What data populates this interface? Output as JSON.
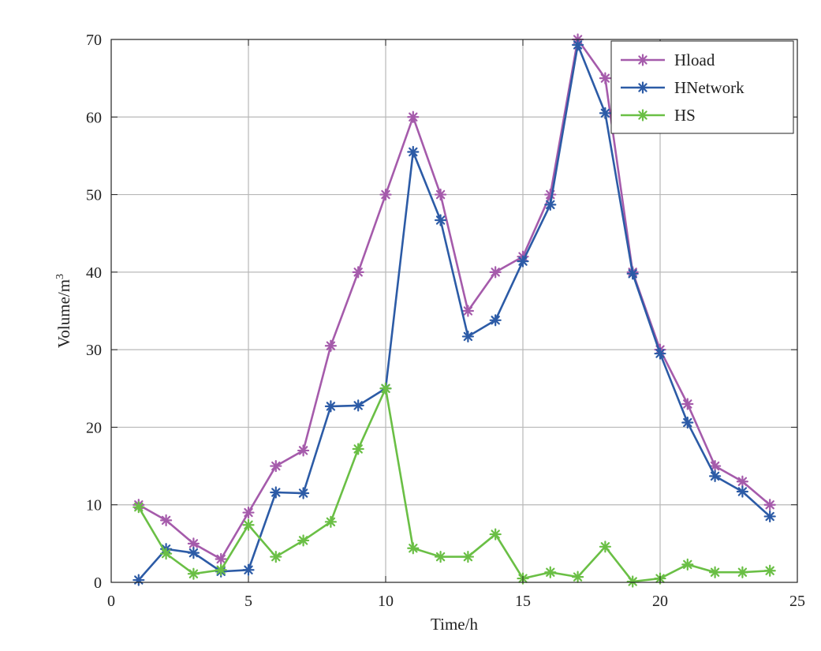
{
  "chart_data": {
    "type": "line",
    "title": "",
    "xlabel": "Time/h",
    "ylabel_base": "Volume/m",
    "ylabel_sup": "3",
    "xlim": [
      0,
      25
    ],
    "ylim": [
      0,
      70
    ],
    "xticks": [
      0,
      5,
      10,
      15,
      20,
      25
    ],
    "yticks": [
      0,
      10,
      20,
      30,
      40,
      50,
      60,
      70
    ],
    "grid": true,
    "legend_position": "top-right",
    "marker": "asterisk",
    "x": [
      1,
      2,
      3,
      4,
      5,
      6,
      7,
      8,
      9,
      10,
      11,
      12,
      13,
      14,
      15,
      16,
      17,
      18,
      19,
      20,
      21,
      22,
      23,
      24
    ],
    "series": [
      {
        "name": "Hload",
        "color": "#a55bab",
        "values": [
          10,
          8,
          5,
          3,
          9,
          15,
          17,
          30.5,
          40,
          50,
          60,
          50,
          35,
          40,
          42,
          50,
          70,
          65,
          40,
          30,
          23,
          15,
          13,
          10
        ]
      },
      {
        "name": "HNetwork",
        "color": "#2c5ba6",
        "values": [
          0.3,
          4.3,
          3.8,
          1.4,
          1.6,
          11.6,
          11.5,
          22.7,
          22.8,
          25,
          55.5,
          46.7,
          31.7,
          33.8,
          41.4,
          48.7,
          69.3,
          60.5,
          39.8,
          29.5,
          20.6,
          13.7,
          11.7,
          8.5
        ]
      },
      {
        "name": "HS",
        "color": "#6abf45",
        "values": [
          9.7,
          3.7,
          1.1,
          1.6,
          7.4,
          3.3,
          5.4,
          7.8,
          17.2,
          25,
          4.4,
          3.3,
          3.3,
          6.2,
          0.5,
          1.3,
          0.7,
          4.6,
          0.1,
          0.5,
          2.3,
          1.3,
          1.3,
          1.5
        ]
      }
    ]
  }
}
